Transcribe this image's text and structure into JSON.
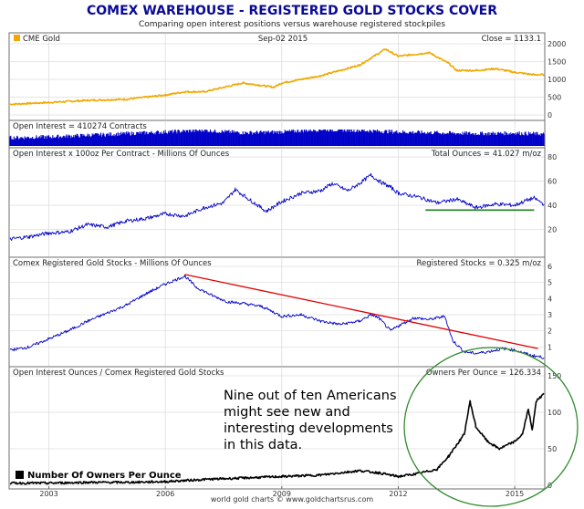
{
  "header": {
    "title": "COMEX WAREHOUSE - REGISTERED GOLD STOCKS COVER",
    "subtitle": "Comparing open interest positions versus warehouse registered stockpiles"
  },
  "footer": {
    "credit": "world gold charts © www.goldchartsrus.com"
  },
  "annotation": {
    "lines": [
      "Nine out of ten Americans",
      "might see new and",
      "interesting developments",
      "in this data."
    ]
  },
  "chart_data": {
    "type": "line",
    "x_range": [
      2002.0,
      2015.75
    ],
    "x_ticks": [
      "2003",
      "2006",
      "2009",
      "2012",
      "2015"
    ],
    "panels": [
      {
        "id": "gold",
        "label_left": "CME Gold",
        "label_mid": "Sep-02 2015",
        "label_right": "Close = 1133.1",
        "ylim": [
          0,
          2000
        ],
        "yticks": [
          "0",
          "500",
          "1000",
          "1500",
          "2000"
        ],
        "color": "#f0a800",
        "series": [
          [
            2002.0,
            300
          ],
          [
            2003.0,
            350
          ],
          [
            2004.0,
            410
          ],
          [
            2005.0,
            440
          ],
          [
            2006.0,
            560
          ],
          [
            2006.5,
            650
          ],
          [
            2007.0,
            650
          ],
          [
            2008.0,
            900
          ],
          [
            2008.8,
            780
          ],
          [
            2009.0,
            900
          ],
          [
            2010.0,
            1100
          ],
          [
            2011.0,
            1400
          ],
          [
            2011.67,
            1850
          ],
          [
            2012.0,
            1650
          ],
          [
            2012.8,
            1750
          ],
          [
            2013.3,
            1450
          ],
          [
            2013.5,
            1250
          ],
          [
            2014.0,
            1250
          ],
          [
            2014.5,
            1300
          ],
          [
            2015.0,
            1200
          ],
          [
            2015.5,
            1130
          ],
          [
            2015.75,
            1133
          ]
        ]
      },
      {
        "id": "oi",
        "label_left": "Open Interest = 410274 Contracts",
        "color": "#0000c8",
        "series": [
          [
            2002.0,
            0.5
          ],
          [
            2003.0,
            0.55
          ],
          [
            2004.0,
            0.65
          ],
          [
            2005.0,
            0.75
          ],
          [
            2006.0,
            0.85
          ],
          [
            2007.0,
            0.95
          ],
          [
            2008.0,
            0.8
          ],
          [
            2009.0,
            0.85
          ],
          [
            2010.0,
            1.0
          ],
          [
            2011.0,
            0.95
          ],
          [
            2012.0,
            0.85
          ],
          [
            2013.0,
            0.8
          ],
          [
            2014.0,
            0.75
          ],
          [
            2015.0,
            0.78
          ],
          [
            2015.75,
            0.72
          ]
        ]
      },
      {
        "id": "ounces",
        "label_left": "Open Interest x 100oz Per Contract - Millions Of Ounces",
        "label_right": "Total Ounces = 41.027 m/oz",
        "ylim": [
          0,
          80
        ],
        "yticks": [
          "20",
          "40",
          "60",
          "80"
        ],
        "color": "#0000c8",
        "series": [
          [
            2002.0,
            12
          ],
          [
            2002.5,
            14
          ],
          [
            2003.0,
            17
          ],
          [
            2003.5,
            18
          ],
          [
            2004.0,
            24
          ],
          [
            2004.5,
            22
          ],
          [
            2005.0,
            27
          ],
          [
            2005.5,
            29
          ],
          [
            2006.0,
            33
          ],
          [
            2006.5,
            31
          ],
          [
            2007.0,
            38
          ],
          [
            2007.5,
            42
          ],
          [
            2007.8,
            53
          ],
          [
            2008.2,
            44
          ],
          [
            2008.6,
            35
          ],
          [
            2009.0,
            43
          ],
          [
            2009.5,
            50
          ],
          [
            2010.0,
            52
          ],
          [
            2010.3,
            58
          ],
          [
            2010.7,
            52
          ],
          [
            2011.0,
            58
          ],
          [
            2011.3,
            65
          ],
          [
            2011.5,
            60
          ],
          [
            2011.8,
            55
          ],
          [
            2012.0,
            50
          ],
          [
            2012.5,
            47
          ],
          [
            2013.0,
            42
          ],
          [
            2013.5,
            45
          ],
          [
            2014.0,
            38
          ],
          [
            2014.5,
            41
          ],
          [
            2015.0,
            40
          ],
          [
            2015.3,
            44
          ],
          [
            2015.5,
            46
          ],
          [
            2015.75,
            41
          ]
        ],
        "support_line": [
          [
            2012.7,
            36
          ],
          [
            2015.5,
            36
          ]
        ],
        "support_color": "#1f7f1f"
      },
      {
        "id": "stocks",
        "label_left": "Comex Registered Gold Stocks - Millions Of Ounces",
        "label_right": "Registered Stocks = 0.325 m/oz",
        "ylim": [
          0,
          6
        ],
        "yticks": [
          "1",
          "2",
          "3",
          "4",
          "5",
          "6"
        ],
        "color": "#0000c8",
        "series": [
          [
            2002.0,
            0.8
          ],
          [
            2002.5,
            1.0
          ],
          [
            2003.0,
            1.5
          ],
          [
            2003.5,
            2.0
          ],
          [
            2004.0,
            2.6
          ],
          [
            2004.5,
            3.1
          ],
          [
            2005.0,
            3.6
          ],
          [
            2005.5,
            4.3
          ],
          [
            2006.0,
            4.9
          ],
          [
            2006.5,
            5.4
          ],
          [
            2006.8,
            4.7
          ],
          [
            2007.2,
            4.2
          ],
          [
            2007.6,
            3.8
          ],
          [
            2008.0,
            3.7
          ],
          [
            2008.5,
            3.5
          ],
          [
            2009.0,
            2.9
          ],
          [
            2009.5,
            3.0
          ],
          [
            2010.0,
            2.6
          ],
          [
            2010.5,
            2.4
          ],
          [
            2011.0,
            2.6
          ],
          [
            2011.3,
            3.0
          ],
          [
            2011.5,
            2.8
          ],
          [
            2011.8,
            2.0
          ],
          [
            2012.0,
            2.3
          ],
          [
            2012.4,
            2.8
          ],
          [
            2012.8,
            2.7
          ],
          [
            2013.2,
            2.9
          ],
          [
            2013.4,
            1.4
          ],
          [
            2013.7,
            0.7
          ],
          [
            2014.0,
            0.6
          ],
          [
            2014.3,
            0.7
          ],
          [
            2014.7,
            0.9
          ],
          [
            2015.0,
            0.8
          ],
          [
            2015.4,
            0.5
          ],
          [
            2015.75,
            0.33
          ]
        ],
        "trend_line": [
          [
            2006.5,
            5.5
          ],
          [
            2015.6,
            0.9
          ]
        ],
        "trend_color": "#e00000"
      },
      {
        "id": "ratio",
        "label_left": "Open Interest Ounces / Comex Registered Gold Stocks",
        "label_right": "Owners Per Ounce = 126.334",
        "legend": "Number Of Owners Per Ounce",
        "ylim": [
          0,
          150
        ],
        "yticks": [
          "0",
          "50",
          "100",
          "150"
        ],
        "color": "#000000",
        "series": [
          [
            2002.0,
            3
          ],
          [
            2003.0,
            3
          ],
          [
            2004.0,
            4
          ],
          [
            2005.0,
            4
          ],
          [
            2006.0,
            5
          ],
          [
            2007.0,
            8
          ],
          [
            2008.0,
            10
          ],
          [
            2009.0,
            12
          ],
          [
            2010.0,
            14
          ],
          [
            2011.0,
            20
          ],
          [
            2011.5,
            17
          ],
          [
            2012.0,
            12
          ],
          [
            2012.5,
            16
          ],
          [
            2013.0,
            22
          ],
          [
            2013.3,
            40
          ],
          [
            2013.5,
            55
          ],
          [
            2013.7,
            70
          ],
          [
            2013.85,
            115
          ],
          [
            2014.0,
            80
          ],
          [
            2014.3,
            60
          ],
          [
            2014.6,
            50
          ],
          [
            2015.0,
            60
          ],
          [
            2015.2,
            70
          ],
          [
            2015.35,
            105
          ],
          [
            2015.45,
            75
          ],
          [
            2015.55,
            115
          ],
          [
            2015.65,
            120
          ],
          [
            2015.75,
            126
          ]
        ]
      }
    ]
  }
}
